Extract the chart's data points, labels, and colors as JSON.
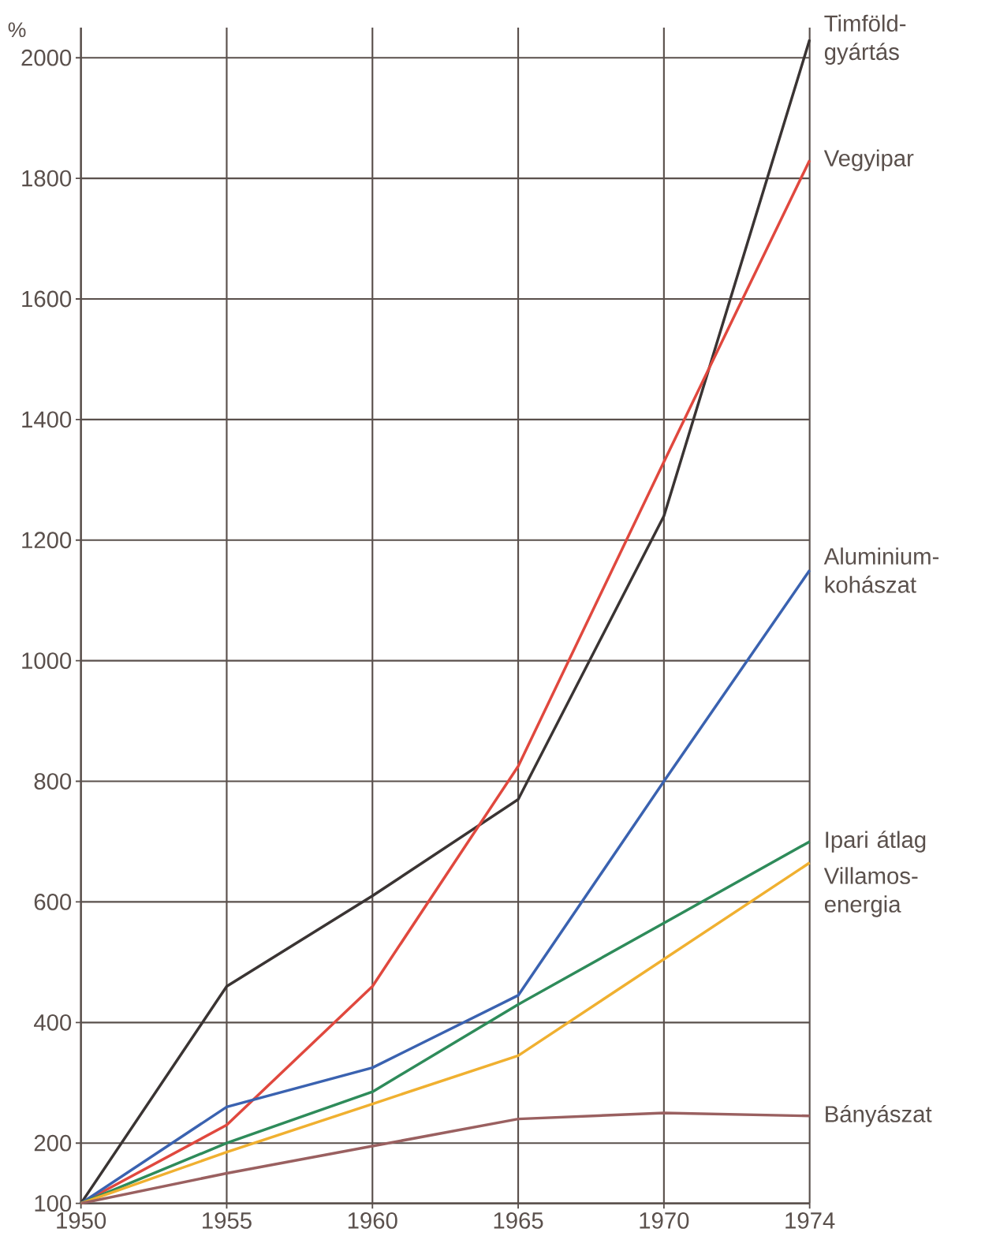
{
  "chart_data": {
    "type": "line",
    "ylabel": "%",
    "categories": [
      "1950",
      "1955",
      "1960",
      "1965",
      "1970",
      "1974"
    ],
    "series": [
      {
        "name": "Timföld-gyártás",
        "color": "#3a3433",
        "values": [
          100,
          460,
          610,
          770,
          1240,
          2030
        ]
      },
      {
        "name": "Vegyipar",
        "color": "#e0483e",
        "values": [
          100,
          230,
          460,
          825,
          1330,
          1830
        ]
      },
      {
        "name": "Aluminium-kohászat",
        "color": "#3a62b0",
        "values": [
          100,
          260,
          325,
          445,
          800,
          1150
        ]
      },
      {
        "name": "Ipari átlag",
        "color": "#2e8b5a",
        "values": [
          100,
          200,
          285,
          430,
          565,
          700
        ]
      },
      {
        "name": "Villamos-energia",
        "color": "#f0b030",
        "values": [
          100,
          185,
          265,
          345,
          505,
          665
        ]
      },
      {
        "name": "Bányászat",
        "color": "#9a6060",
        "values": [
          100,
          150,
          195,
          240,
          250,
          245
        ]
      }
    ],
    "ylim": [
      100,
      2050
    ],
    "yticks": [
      100,
      200,
      400,
      600,
      800,
      1000,
      1200,
      1400,
      1600,
      1800,
      2000
    ],
    "grid": true
  }
}
